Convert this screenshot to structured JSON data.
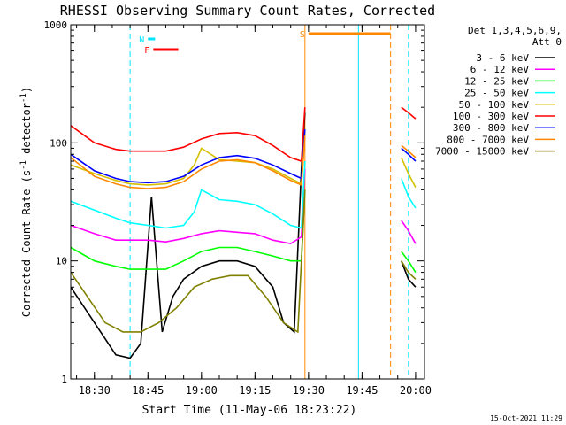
{
  "chart_data": {
    "type": "line",
    "title": "RHESSI Observing Summary Count Rates, Corrected",
    "xlabel": "Start Time (11-May-06 18:23:22)",
    "ylabel": "Corrected Count Rate (s",
    "ylabel_sup": "-1",
    "ylabel_mid": " detector",
    "ylabel_end": ")",
    "y_scale": "log",
    "ylim": [
      1,
      1000
    ],
    "xlim": [
      "18:23:22",
      "20:02:30"
    ],
    "x_ticks": [
      "18:30",
      "18:45",
      "19:00",
      "19:15",
      "19:30",
      "19:45",
      "20:00"
    ],
    "y_ticks": [
      "1",
      "10",
      "100",
      "1000"
    ],
    "legend_header": [
      "Det 1,3,4,5,6,9,",
      "Att 0"
    ],
    "legend_position": "right",
    "timestamp": "15-Oct-2021 11:29",
    "flags": [
      {
        "label": "N",
        "color": "#00e5ff",
        "start": "18:45:00",
        "end": "18:47:00"
      },
      {
        "label": "F",
        "color": "#ff0000",
        "start": "18:46:30",
        "end": "18:53:30"
      },
      {
        "label": "S",
        "color": "#ff8800",
        "start": "19:30:00",
        "end": "19:53:00"
      }
    ],
    "vertical_lines": [
      {
        "time": "18:23:22",
        "color": "#00e5ff",
        "style": "solid"
      },
      {
        "time": "18:40:00",
        "color": "#00e5ff",
        "style": "dashed"
      },
      {
        "time": "19:29:00",
        "color": "#ff8800",
        "style": "solid"
      },
      {
        "time": "19:44:00",
        "color": "#00e5ff",
        "style": "solid"
      },
      {
        "time": "19:53:00",
        "color": "#ff8800",
        "style": "dashed"
      },
      {
        "time": "19:58:00",
        "color": "#00e5ff",
        "style": "dashed"
      }
    ],
    "series": [
      {
        "name": "3 - 6 keV",
        "color": "#000000",
        "t": [
          "18:23:22",
          "18:30",
          "18:36",
          "18:40",
          "18:43",
          "18:46",
          "18:49",
          "18:52",
          "18:55",
          "19:00",
          "19:05",
          "19:10",
          "19:15",
          "19:20",
          "19:23",
          "19:26",
          "19:28",
          "19:29",
          "19:56",
          "19:58",
          "20:00"
        ],
        "values": [
          6,
          3,
          1.6,
          1.5,
          2,
          35,
          2.5,
          5,
          7,
          9,
          10,
          10,
          9,
          6,
          3,
          2.5,
          60,
          180,
          10,
          7,
          6
        ]
      },
      {
        "name": "6 - 12 keV",
        "color": "#ff00ff",
        "t": [
          "18:23:22",
          "18:30",
          "18:36",
          "18:40",
          "18:45",
          "18:50",
          "18:55",
          "19:00",
          "19:05",
          "19:10",
          "19:15",
          "19:20",
          "19:25",
          "19:28",
          "19:29",
          "19:56",
          "19:58",
          "20:00"
        ],
        "values": [
          20,
          17,
          15,
          15,
          15,
          14.5,
          15.5,
          17,
          18,
          17.5,
          17,
          15,
          14,
          16,
          60,
          22,
          18,
          14
        ]
      },
      {
        "name": "12 - 25 keV",
        "color": "#00ff00",
        "t": [
          "18:23:22",
          "18:30",
          "18:36",
          "18:40",
          "18:45",
          "18:50",
          "18:55",
          "19:00",
          "19:05",
          "19:10",
          "19:15",
          "19:20",
          "19:25",
          "19:28",
          "19:29",
          "19:56",
          "19:58",
          "20:00"
        ],
        "values": [
          13,
          10,
          9,
          8.5,
          8.5,
          8.5,
          10,
          12,
          13,
          13,
          12,
          11,
          10,
          10,
          40,
          12,
          10,
          8
        ]
      },
      {
        "name": "25 - 50 keV",
        "color": "#00ffff",
        "t": [
          "18:23:22",
          "18:30",
          "18:36",
          "18:40",
          "18:45",
          "18:50",
          "18:55",
          "18:58",
          "19:00",
          "19:05",
          "19:10",
          "19:15",
          "19:20",
          "19:25",
          "19:28",
          "19:29",
          "19:56",
          "19:58",
          "20:00"
        ],
        "values": [
          32,
          27,
          23,
          21,
          20,
          19,
          20,
          26,
          40,
          33,
          32,
          30,
          25,
          20,
          19,
          70,
          50,
          35,
          28
        ]
      },
      {
        "name": "50 - 100 keV",
        "color": "#d4c000",
        "t": [
          "18:23:22",
          "18:30",
          "18:36",
          "18:40",
          "18:45",
          "18:50",
          "18:55",
          "18:58",
          "19:00",
          "19:05",
          "19:10",
          "19:15",
          "19:20",
          "19:25",
          "19:28",
          "19:29",
          "19:56",
          "19:58",
          "20:00"
        ],
        "values": [
          65,
          55,
          48,
          45,
          44,
          45,
          50,
          65,
          90,
          72,
          70,
          68,
          60,
          50,
          45,
          120,
          75,
          55,
          42
        ]
      },
      {
        "name": "100 - 300 keV",
        "color": "#ff0000",
        "t": [
          "18:23:22",
          "18:30",
          "18:36",
          "18:40",
          "18:45",
          "18:50",
          "18:55",
          "19:00",
          "19:05",
          "19:10",
          "19:15",
          "19:20",
          "19:25",
          "19:28",
          "19:29",
          "19:56",
          "19:58",
          "20:00"
        ],
        "values": [
          140,
          100,
          88,
          85,
          85,
          85,
          92,
          108,
          120,
          122,
          115,
          95,
          75,
          70,
          200,
          200,
          180,
          160
        ]
      },
      {
        "name": "300 - 800 keV",
        "color": "#0000ff",
        "t": [
          "18:23:22",
          "18:30",
          "18:36",
          "18:40",
          "18:45",
          "18:50",
          "18:55",
          "19:00",
          "19:05",
          "19:10",
          "19:15",
          "19:20",
          "19:25",
          "19:28",
          "19:29",
          "19:56",
          "19:58",
          "20:00"
        ],
        "values": [
          80,
          58,
          50,
          47,
          46,
          47,
          52,
          65,
          75,
          78,
          74,
          65,
          55,
          50,
          130,
          90,
          80,
          70
        ]
      },
      {
        "name": "800 - 7000 keV",
        "color": "#ff8800",
        "t": [
          "18:23:22",
          "18:30",
          "18:36",
          "18:40",
          "18:45",
          "18:50",
          "18:55",
          "19:00",
          "19:05",
          "19:10",
          "19:15",
          "19:20",
          "19:25",
          "19:28",
          "19:29",
          "19:56",
          "19:58",
          "20:00"
        ],
        "values": [
          75,
          52,
          45,
          42,
          41,
          42,
          47,
          60,
          70,
          72,
          68,
          58,
          48,
          44,
          115,
          95,
          85,
          75
        ]
      },
      {
        "name": "7000 - 15000 keV",
        "color": "#808000",
        "t": [
          "18:23:22",
          "18:28",
          "18:33",
          "18:38",
          "18:43",
          "18:48",
          "18:53",
          "18:58",
          "19:03",
          "19:08",
          "19:13",
          "19:18",
          "19:23",
          "19:27",
          "19:29",
          "19:56",
          "19:58",
          "20:00"
        ],
        "values": [
          8,
          5,
          3,
          2.5,
          2.5,
          3,
          4,
          6,
          7,
          7.5,
          7.5,
          5,
          3,
          2.5,
          40,
          10,
          8,
          7
        ]
      }
    ]
  }
}
